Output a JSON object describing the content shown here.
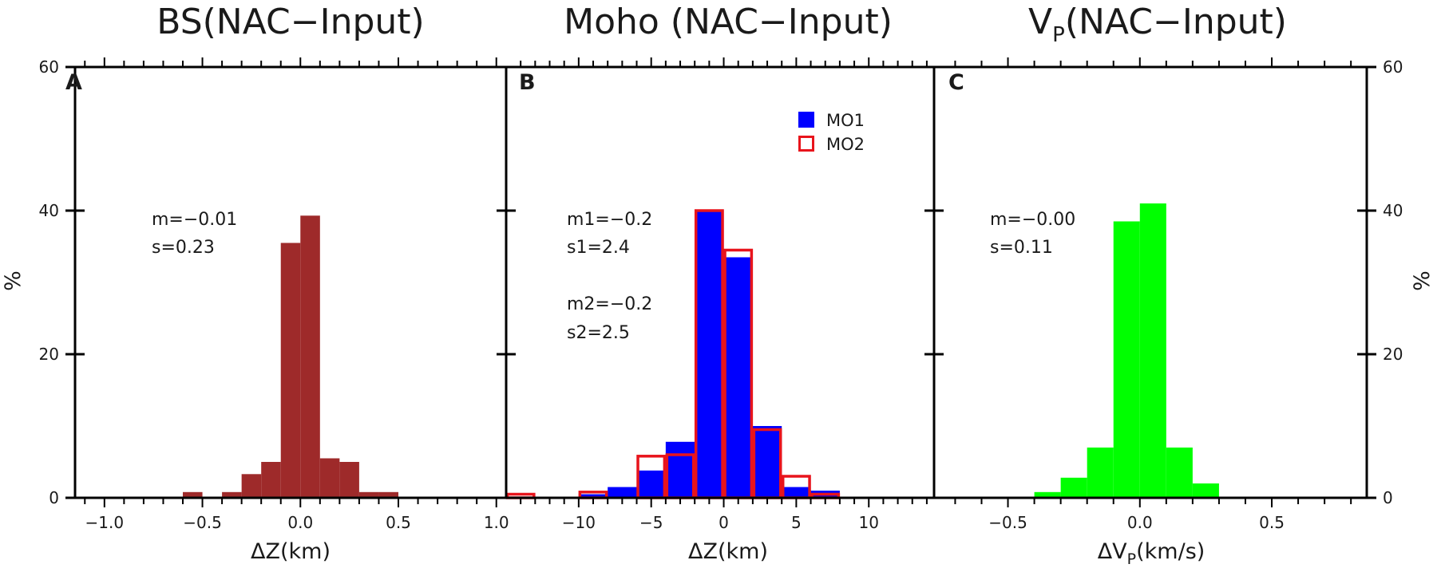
{
  "chart_data": [
    {
      "type": "bar",
      "panel": "A",
      "title": "BS(NAC−Input)",
      "xlabel": "ΔZ(km)",
      "ylabel": "%",
      "xlim": [
        -1.15,
        1.05
      ],
      "ylim": [
        0,
        60
      ],
      "xticks": [
        -1.0,
        -0.5,
        0.0,
        0.5,
        1.0
      ],
      "xtick_labels": [
        "−1.0",
        "−0.5",
        "0.0",
        "0.5",
        "1.0"
      ],
      "yticks": [
        0,
        20,
        40,
        60
      ],
      "ytick_labels": [
        "0",
        "20",
        "40",
        "60"
      ],
      "bin_width": 0.1,
      "color": "#9e2a2a",
      "series": [
        {
          "name": "BS",
          "bin_left": [
            -0.6,
            -0.4,
            -0.3,
            -0.2,
            -0.1,
            0.0,
            0.1,
            0.2,
            0.3,
            0.4
          ],
          "values": [
            0.8,
            0.8,
            3.3,
            5.0,
            35.5,
            39.3,
            5.5,
            5.0,
            0.8,
            0.8
          ]
        }
      ],
      "annotations": [
        "m=−0.01",
        "s=0.23"
      ]
    },
    {
      "type": "bar",
      "panel": "B",
      "title": "Moho (NAC−Input)",
      "xlabel": "ΔZ(km)",
      "ylabel": "%",
      "xlim": [
        -15,
        14.5
      ],
      "ylim": [
        0,
        60
      ],
      "xticks": [
        -10,
        -5,
        0,
        5,
        10
      ],
      "xtick_labels": [
        "−10",
        "−5",
        "0",
        "5",
        "10"
      ],
      "yticks": [
        0,
        20,
        40,
        60
      ],
      "bin_width": 2,
      "legend": {
        "position": "top-right",
        "entries": [
          "MO1",
          "MO2"
        ]
      },
      "series": [
        {
          "name": "MO1",
          "style": "filled",
          "color": "#0000ff",
          "bin_left": [
            -10,
            -8,
            -6,
            -4,
            -2,
            0,
            2,
            4,
            6
          ],
          "values": [
            0.5,
            1.5,
            3.8,
            7.8,
            40.0,
            33.5,
            10.0,
            1.5,
            1.0
          ]
        },
        {
          "name": "MO2",
          "style": "outline",
          "color": "#e8141c",
          "bin_left": [
            -15,
            -10,
            -6,
            -4,
            -2,
            0,
            2,
            4,
            6
          ],
          "values": [
            0.5,
            0.8,
            5.8,
            6.0,
            40.0,
            34.5,
            9.5,
            3.0,
            0.5
          ]
        }
      ],
      "annotations": [
        "m1=−0.2",
        "s1=2.4",
        "m2=−0.2",
        "s2=2.5"
      ]
    },
    {
      "type": "bar",
      "panel": "C",
      "title_main": "V",
      "title_sub": "P",
      "title_rest": "(NAC−Input)",
      "xlabel_prefix": "ΔV",
      "xlabel_sub": "P",
      "xlabel_rest": "(km/s)",
      "ylabel": "%",
      "xlim": [
        -0.78,
        0.86
      ],
      "ylim": [
        0,
        60
      ],
      "xticks": [
        -0.5,
        0.0,
        0.5
      ],
      "xtick_labels": [
        "−0.5",
        "0.0",
        "0.5"
      ],
      "yticks": [
        0,
        20,
        40,
        60
      ],
      "ytick_labels": [
        "0",
        "20",
        "40",
        "60"
      ],
      "bin_width": 0.1,
      "color": "#00ff00",
      "series": [
        {
          "name": "VP",
          "bin_left": [
            -0.4,
            -0.3,
            -0.2,
            -0.1,
            0.0,
            0.1,
            0.2
          ],
          "values": [
            0.8,
            2.8,
            7.0,
            38.5,
            41.0,
            7.0,
            2.0
          ]
        }
      ],
      "annotations": [
        "m=−0.00",
        "s=0.11"
      ]
    }
  ]
}
